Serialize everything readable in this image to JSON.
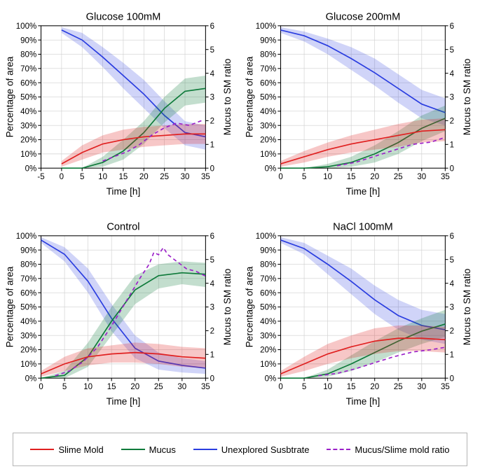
{
  "global": {
    "x_label": "Time [h]",
    "y_left_label": "Percentage of area",
    "y_right_label": "Mucus to SM ratio",
    "x_min": -5,
    "x_max": 35,
    "x_ticks": [
      -5,
      0,
      5,
      10,
      15,
      20,
      25,
      30,
      35
    ],
    "y_left_min": 0,
    "y_left_max": 100,
    "y_left_ticks": [
      0,
      10,
      20,
      30,
      40,
      50,
      60,
      70,
      80,
      90,
      100
    ],
    "y_right_min": 0,
    "y_right_max": 6,
    "y_right_ticks": [
      0,
      1,
      2,
      3,
      4,
      5,
      6
    ],
    "grid_color": "#cfcfcf",
    "axis_color": "#000000",
    "bg": "#ffffff",
    "colors": {
      "slime": "#e02020",
      "slime_fill": "rgba(224,32,32,0.25)",
      "mucus": "#0e7a3a",
      "mucus_fill": "rgba(14,122,58,0.25)",
      "unexplored": "#2a3de0",
      "unexplored_fill": "rgba(42,61,224,0.22)",
      "ratio": "#9b20c9"
    }
  },
  "panels": [
    {
      "title": "Glucose 100mM",
      "x_min": -5,
      "slime": {
        "x": [
          0,
          5,
          10,
          15,
          20,
          25,
          30,
          35
        ],
        "y": [
          3,
          11,
          17,
          20,
          22,
          23,
          24,
          24
        ],
        "lo": [
          1,
          6,
          11,
          13,
          15,
          16,
          17,
          17
        ],
        "hi": [
          5,
          16,
          23,
          27,
          29,
          30,
          31,
          31
        ]
      },
      "mucus": {
        "x": [
          0,
          5,
          10,
          15,
          20,
          25,
          30,
          35
        ],
        "y": [
          0,
          0,
          4,
          12,
          25,
          42,
          54,
          56
        ],
        "lo": [
          0,
          0,
          1,
          6,
          17,
          32,
          44,
          46
        ],
        "hi": [
          0,
          0,
          8,
          20,
          33,
          50,
          63,
          65
        ]
      },
      "unexplored": {
        "x": [
          0,
          5,
          10,
          15,
          20,
          25,
          30,
          35
        ],
        "y": [
          97,
          90,
          78,
          65,
          52,
          37,
          25,
          22
        ],
        "lo": [
          95,
          85,
          71,
          56,
          42,
          28,
          16,
          13
        ],
        "hi": [
          99,
          95,
          85,
          74,
          62,
          47,
          33,
          30
        ]
      },
      "ratio": {
        "x": [
          10,
          13,
          16,
          19,
          22,
          25,
          28,
          31,
          34
        ],
        "y": [
          0.3,
          0.5,
          0.7,
          1.0,
          1.4,
          1.7,
          1.9,
          1.8,
          2.0
        ]
      }
    },
    {
      "title": "Glucose 200mM",
      "x_min": 0,
      "slime": {
        "x": [
          0,
          5,
          10,
          15,
          20,
          25,
          30,
          35
        ],
        "y": [
          3,
          8,
          13,
          17,
          20,
          23,
          26,
          27
        ],
        "lo": [
          1,
          4,
          8,
          11,
          13,
          15,
          18,
          19
        ],
        "hi": [
          5,
          12,
          18,
          23,
          27,
          31,
          34,
          35
        ]
      },
      "mucus": {
        "x": [
          0,
          5,
          10,
          15,
          20,
          25,
          30,
          35
        ],
        "y": [
          0,
          0,
          1,
          4,
          10,
          18,
          28,
          35
        ],
        "lo": [
          0,
          0,
          0,
          1,
          4,
          10,
          19,
          26
        ],
        "hi": [
          0,
          0,
          3,
          8,
          16,
          26,
          37,
          44
        ]
      },
      "unexplored": {
        "x": [
          0,
          5,
          10,
          15,
          20,
          25,
          30,
          35
        ],
        "y": [
          97,
          93,
          86,
          77,
          67,
          56,
          45,
          39
        ],
        "lo": [
          95,
          89,
          80,
          69,
          58,
          46,
          35,
          30
        ],
        "hi": [
          99,
          96,
          91,
          85,
          77,
          66,
          55,
          49
        ]
      },
      "ratio": {
        "x": [
          12,
          16,
          20,
          24,
          28,
          32,
          35
        ],
        "y": [
          0.1,
          0.25,
          0.5,
          0.75,
          1.0,
          1.1,
          1.3
        ]
      }
    },
    {
      "title": "Control",
      "x_min": 0,
      "slime": {
        "x": [
          0,
          5,
          10,
          15,
          20,
          25,
          30,
          35
        ],
        "y": [
          3,
          10,
          15,
          17,
          18,
          17,
          15,
          14
        ],
        "lo": [
          1,
          5,
          9,
          11,
          11,
          10,
          8,
          7
        ],
        "hi": [
          5,
          15,
          21,
          23,
          25,
          24,
          22,
          21
        ]
      },
      "mucus": {
        "x": [
          0,
          5,
          10,
          15,
          20,
          25,
          30,
          35
        ],
        "y": [
          0,
          2,
          15,
          40,
          62,
          72,
          74,
          73
        ],
        "lo": [
          0,
          0,
          8,
          30,
          52,
          63,
          66,
          64
        ],
        "hi": [
          0,
          5,
          25,
          50,
          72,
          80,
          82,
          81
        ]
      },
      "unexplored": {
        "x": [
          0,
          5,
          10,
          15,
          20,
          25,
          30,
          35
        ],
        "y": [
          97,
          87,
          68,
          42,
          21,
          12,
          9,
          7
        ],
        "lo": [
          95,
          82,
          60,
          33,
          14,
          6,
          4,
          3
        ],
        "hi": [
          99,
          92,
          77,
          52,
          30,
          18,
          14,
          12
        ]
      },
      "ratio": {
        "x": [
          3,
          6,
          9,
          12,
          15,
          18,
          21,
          23,
          24,
          25,
          26,
          27,
          29,
          31,
          33,
          35
        ],
        "y": [
          0.1,
          0.3,
          0.7,
          1.3,
          2.2,
          3.2,
          4.2,
          4.8,
          5.3,
          5.2,
          5.5,
          5.2,
          4.9,
          4.6,
          4.5,
          4.3
        ]
      }
    },
    {
      "title": "NaCl 100mM",
      "x_min": 0,
      "slime": {
        "x": [
          0,
          5,
          10,
          15,
          20,
          25,
          30,
          35
        ],
        "y": [
          3,
          10,
          17,
          22,
          26,
          28,
          28,
          27
        ],
        "lo": [
          1,
          5,
          10,
          14,
          17,
          19,
          19,
          18
        ],
        "hi": [
          5,
          15,
          24,
          30,
          35,
          37,
          37,
          36
        ]
      },
      "mucus": {
        "x": [
          0,
          5,
          10,
          15,
          20,
          25,
          30,
          35
        ],
        "y": [
          0,
          0,
          3,
          10,
          18,
          26,
          33,
          38
        ],
        "lo": [
          0,
          0,
          1,
          5,
          11,
          18,
          24,
          29
        ],
        "hi": [
          0,
          0,
          6,
          16,
          26,
          35,
          42,
          48
        ]
      },
      "unexplored": {
        "x": [
          0,
          5,
          10,
          15,
          20,
          25,
          30,
          35
        ],
        "y": [
          97,
          91,
          80,
          68,
          55,
          44,
          37,
          34
        ],
        "lo": [
          95,
          87,
          73,
          59,
          45,
          34,
          27,
          24
        ],
        "hi": [
          99,
          95,
          86,
          77,
          65,
          55,
          48,
          45
        ]
      },
      "ratio": {
        "x": [
          8,
          12,
          16,
          20,
          24,
          28,
          32,
          35
        ],
        "y": [
          0.1,
          0.2,
          0.4,
          0.65,
          0.9,
          1.1,
          1.2,
          1.3
        ]
      }
    }
  ],
  "legend": {
    "items": [
      {
        "label": "Slime Mold",
        "color": "#e02020",
        "dash": false
      },
      {
        "label": "Mucus",
        "color": "#0e7a3a",
        "dash": false
      },
      {
        "label": "Unexplored Susbtrate",
        "color": "#2a3de0",
        "dash": false
      },
      {
        "label": "Mucus/Slime mold ratio",
        "color": "#9b20c9",
        "dash": true
      }
    ]
  }
}
